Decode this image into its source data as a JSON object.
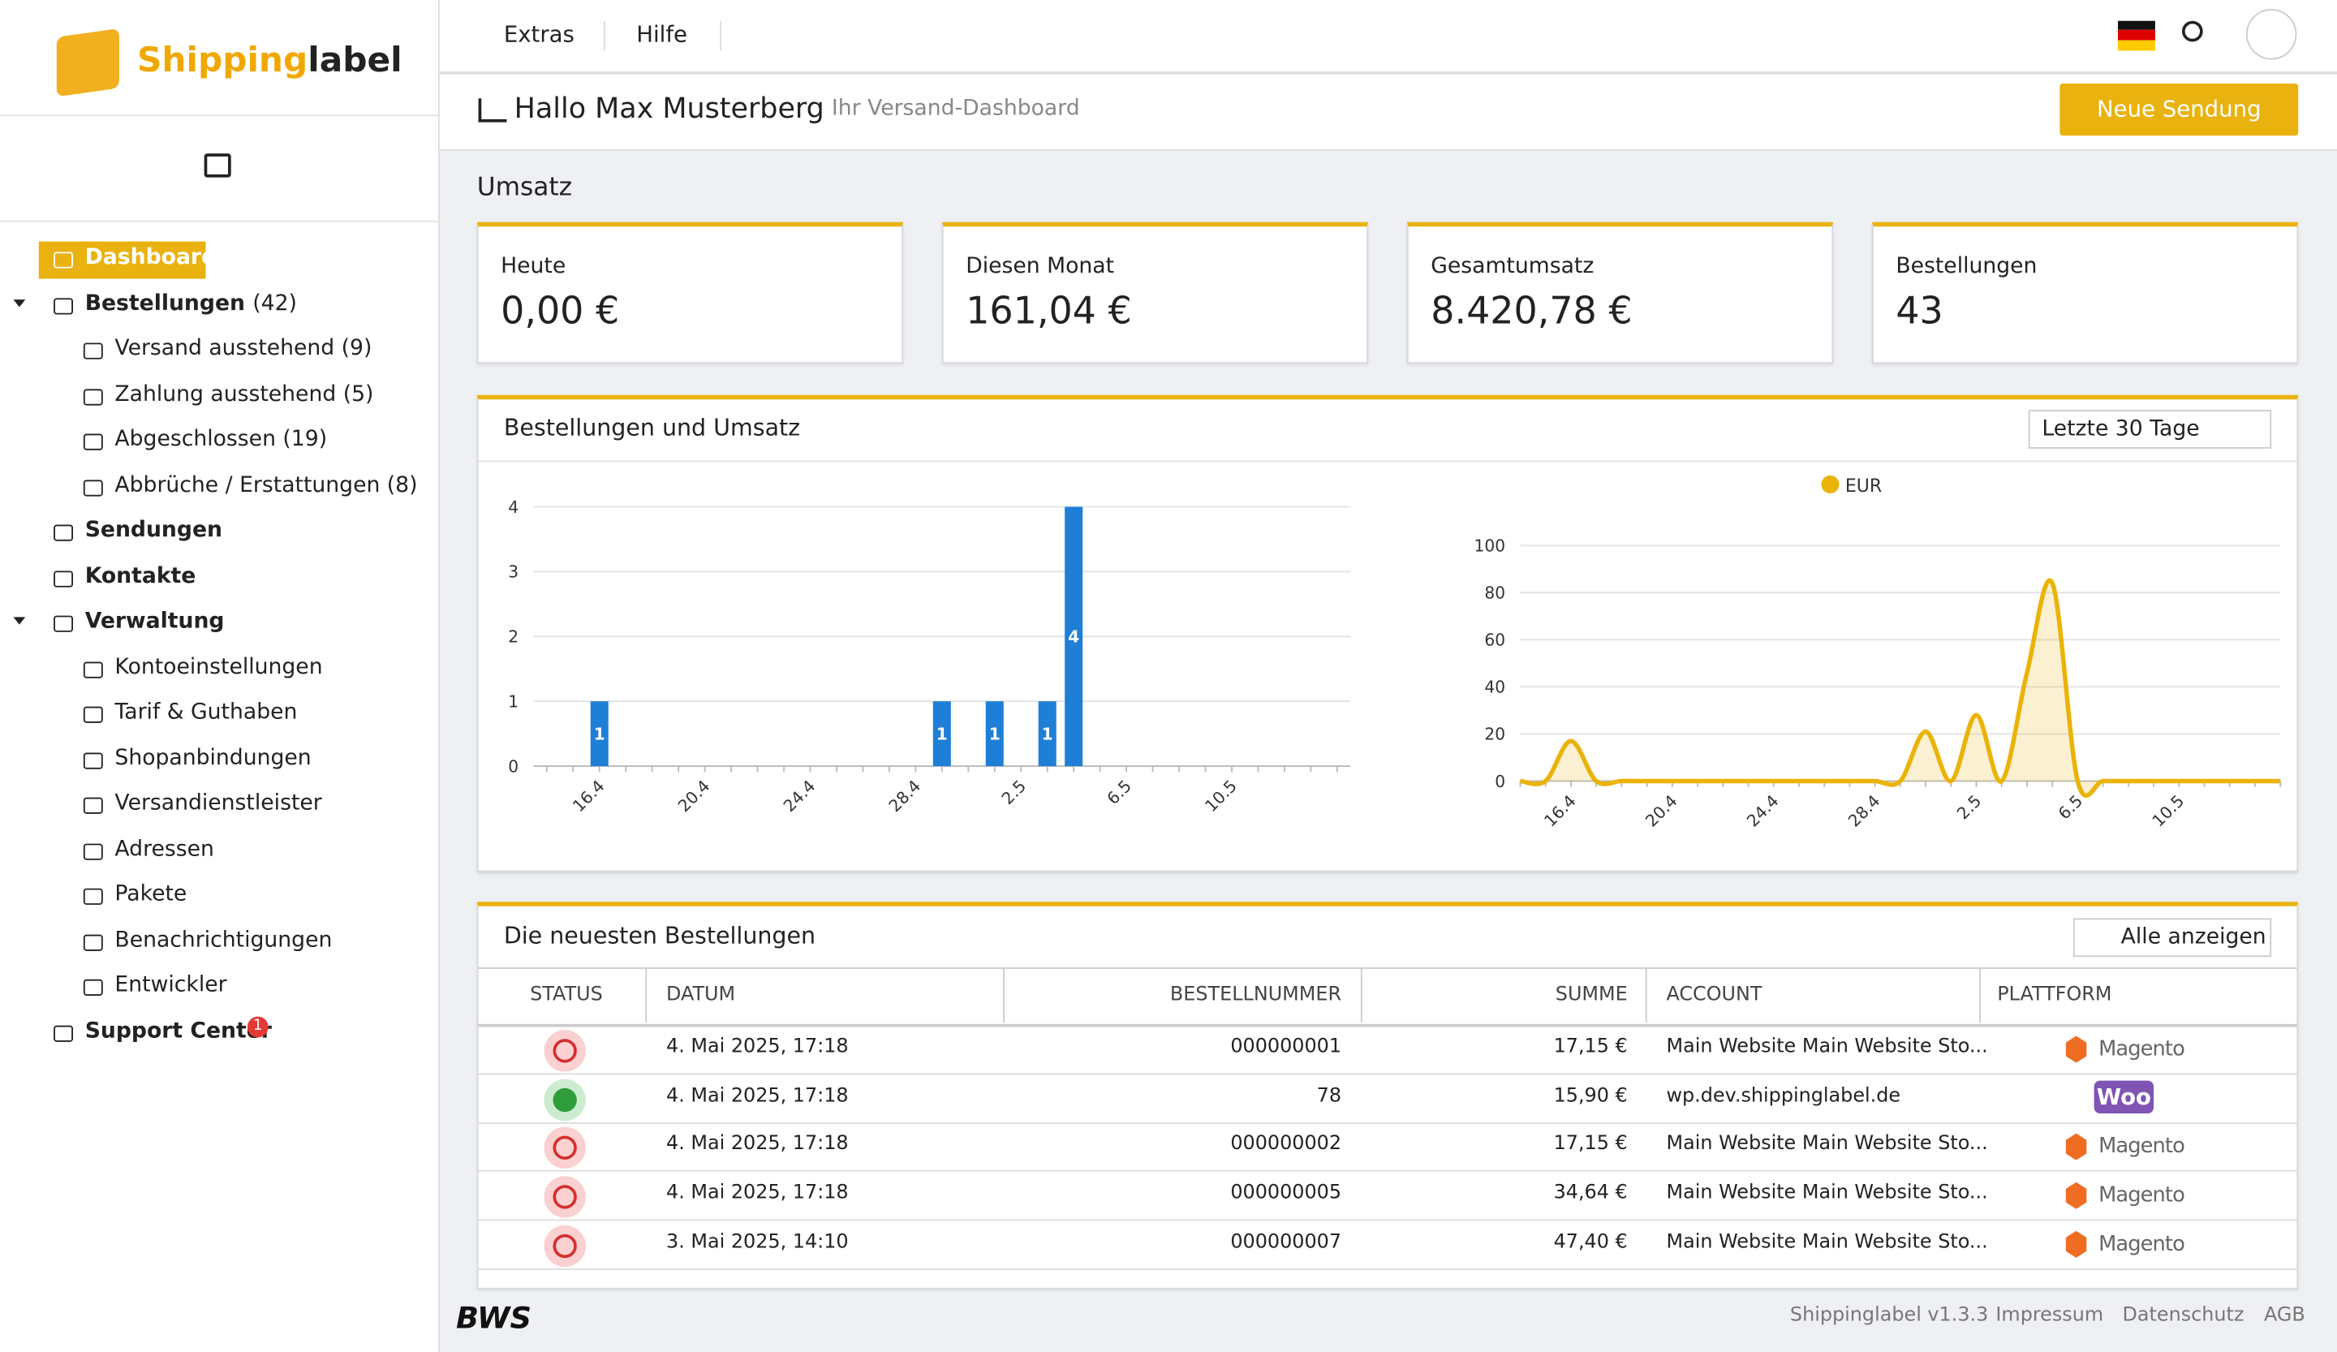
{
  "brand": {
    "name_a": "Shipping",
    "name_b": "label"
  },
  "topbar": {
    "links": [
      "Extras",
      "Hilfe"
    ]
  },
  "nav": [
    {
      "label": "Dashboard",
      "level": 0,
      "active": true
    },
    {
      "label": "Bestellungen",
      "suffix": "(42)",
      "level": 0,
      "caret": true
    },
    {
      "label": "Versand ausstehend (9)",
      "level": 1
    },
    {
      "label": "Zahlung ausstehend (5)",
      "level": 1
    },
    {
      "label": "Abgeschlossen (19)",
      "level": 1
    },
    {
      "label": "Abbrüche / Erstattungen (8)",
      "level": 1
    },
    {
      "label": "Sendungen",
      "level": 0
    },
    {
      "label": "Kontakte",
      "level": 0
    },
    {
      "label": "Verwaltung",
      "level": 0,
      "caret": true
    },
    {
      "label": "Kontoeinstellungen",
      "level": 1
    },
    {
      "label": "Tarif & Guthaben",
      "level": 1
    },
    {
      "label": "Shopanbindungen",
      "level": 1
    },
    {
      "label": "Versandienstleister",
      "level": 1
    },
    {
      "label": "Adressen",
      "level": 1
    },
    {
      "label": "Pakete",
      "level": 1
    },
    {
      "label": "Benachrichtigungen",
      "level": 1
    },
    {
      "label": "Entwickler",
      "level": 1
    },
    {
      "label": "Support Center",
      "level": 0,
      "badge": "1"
    }
  ],
  "header": {
    "title": "Hallo Max Musterberg",
    "subtitle": "Ihr Versand-Dashboard",
    "button": "Neue Sendung"
  },
  "section": "Umsatz",
  "kpis": [
    {
      "label": "Heute",
      "value": "0,00 €"
    },
    {
      "label": "Diesen Monat",
      "value": "161,04 €"
    },
    {
      "label": "Gesamtumsatz",
      "value": "8.420,78 €"
    },
    {
      "label": "Bestellungen",
      "value": "43"
    }
  ],
  "chart_card": {
    "title": "Bestellungen und Umsatz",
    "range": "Letzte 30 Tage"
  },
  "chart_data": [
    {
      "type": "bar",
      "color": "#1f7fd6",
      "categories": [
        null,
        null,
        "16.4",
        null,
        null,
        null,
        "20.4",
        null,
        null,
        null,
        "24.4",
        null,
        null,
        null,
        "28.4",
        null,
        null,
        null,
        "2.5",
        null,
        null,
        null,
        "6.5",
        null,
        null,
        null,
        "10.5",
        null,
        null,
        null,
        null
      ],
      "values": [
        0,
        0,
        1,
        0,
        0,
        0,
        0,
        0,
        0,
        0,
        0,
        0,
        0,
        0,
        0,
        1,
        0,
        1,
        0,
        1,
        4,
        0,
        0,
        0,
        0,
        0,
        0,
        0,
        0,
        0,
        0
      ],
      "ylim": [
        0,
        4
      ],
      "yticks": [
        0,
        1,
        2,
        3,
        4
      ],
      "grid": true
    },
    {
      "type": "line",
      "categories": [
        null,
        null,
        "16.4",
        null,
        null,
        null,
        "20.4",
        null,
        null,
        null,
        "24.4",
        null,
        null,
        null,
        "28.4",
        null,
        null,
        null,
        "2.5",
        null,
        null,
        null,
        "6.5",
        null,
        null,
        null,
        "10.5",
        null,
        null,
        null,
        null
      ],
      "series": [
        {
          "name": "EUR",
          "color": "#eab308",
          "values": [
            0,
            0,
            17,
            0,
            0,
            0,
            0,
            0,
            0,
            0,
            0,
            0,
            0,
            0,
            0,
            0,
            21,
            0,
            28,
            0,
            46,
            84,
            0,
            0,
            0,
            0,
            0,
            0,
            0,
            0,
            0
          ]
        }
      ],
      "ylim": [
        0,
        110
      ],
      "yticks": [
        0,
        20,
        40,
        60,
        80,
        100
      ],
      "grid": true
    }
  ],
  "orders": {
    "title": "Die neuesten Bestellungen",
    "button": "Alle anzeigen",
    "columns": [
      "STATUS",
      "DATUM",
      "BESTELLNUMMER",
      "SUMME",
      "ACCOUNT",
      "PLATTFORM"
    ],
    "rows": [
      [
        "4. Mai 2025, 17:18",
        "000000001",
        "17,15 €",
        "Main Website Main Website Sto...",
        "Magento"
      ],
      [
        "4. Mai 2025, 17:18",
        "78",
        "15,90 €",
        "wp.dev.shippinglabel.de",
        "Woo"
      ],
      [
        "4. Mai 2025, 17:18",
        "000000002",
        "17,15 €",
        "Main Website Main Website Sto...",
        "Magento"
      ],
      [
        "4. Mai 2025, 17:18",
        "000000005",
        "34,64 €",
        "Main Website Main Website Sto...",
        "Magento"
      ],
      [
        "3. Mai 2025, 14:10",
        "000000007",
        "47,40 €",
        "Main Website Main Website Sto...",
        "Magento"
      ]
    ],
    "status": [
      "cancel",
      "ok",
      "cancel",
      "pay",
      "return"
    ]
  },
  "footer": {
    "logo": "BWS",
    "links": [
      "Shippinglabel v1.3.3",
      "Impressum",
      "Datenschutz",
      "AGB"
    ]
  }
}
